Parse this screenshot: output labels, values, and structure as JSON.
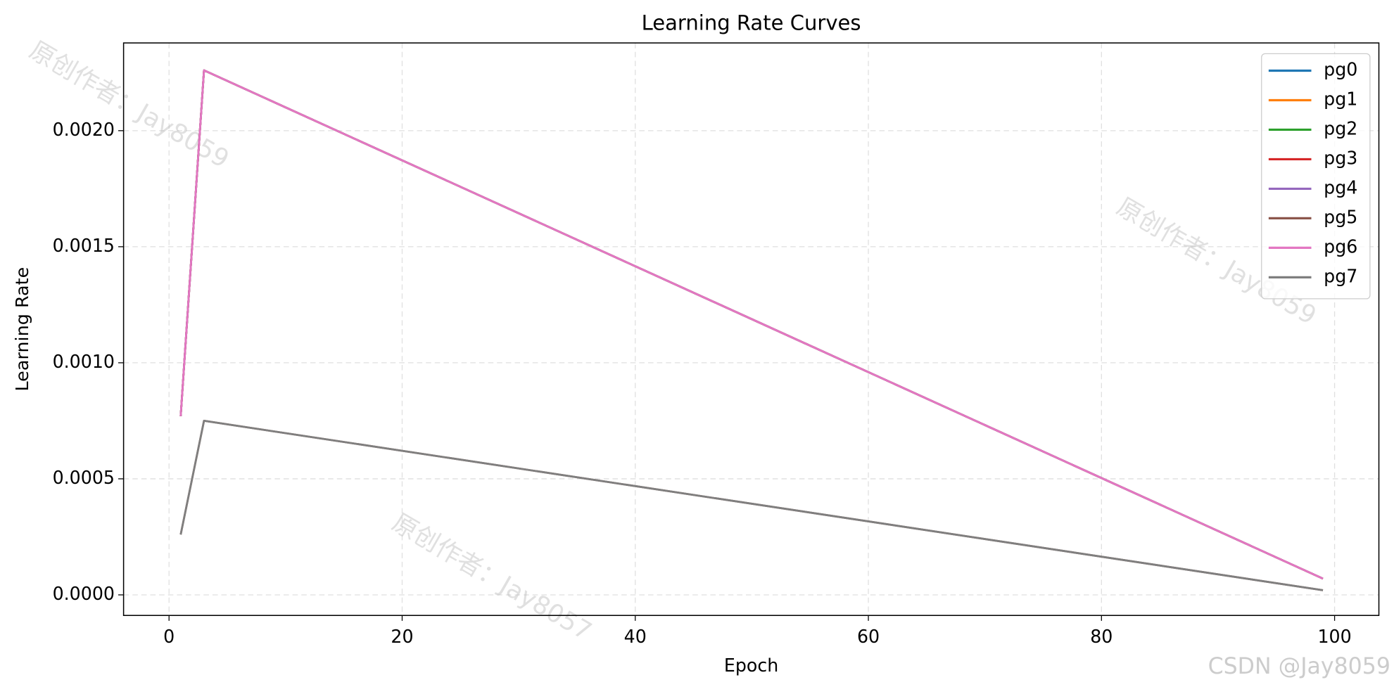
{
  "chart_data": {
    "type": "line",
    "title": "Learning Rate Curves",
    "x_label": "Epoch",
    "y_label": "Learning Rate",
    "x": [
      1,
      3,
      99
    ],
    "series": [
      {
        "name": "pg0",
        "color": "#1f77b4",
        "values": [
          0.00077,
          0.00226,
          7e-05
        ]
      },
      {
        "name": "pg1",
        "color": "#ff7f0e",
        "values": [
          0.00077,
          0.00226,
          7e-05
        ]
      },
      {
        "name": "pg2",
        "color": "#2ca02c",
        "values": [
          0.00077,
          0.00226,
          7e-05
        ]
      },
      {
        "name": "pg3",
        "color": "#d62728",
        "values": [
          0.00077,
          0.00226,
          7e-05
        ]
      },
      {
        "name": "pg4",
        "color": "#9467bd",
        "values": [
          0.00077,
          0.00226,
          7e-05
        ]
      },
      {
        "name": "pg5",
        "color": "#8c564b",
        "values": [
          0.00026,
          0.00075,
          2e-05
        ]
      },
      {
        "name": "pg6",
        "color": "#e377c2",
        "values": [
          0.00077,
          0.00226,
          7e-05
        ]
      },
      {
        "name": "pg7",
        "color": "#7f7f7f",
        "values": [
          0.00026,
          0.00075,
          2e-05
        ]
      }
    ],
    "xlim": [
      -3.9,
      103.8
    ],
    "ylim": [
      -8.86e-05,
      0.002378
    ],
    "xticks": [
      0,
      20,
      40,
      60,
      80,
      100
    ],
    "yticks": [
      {
        "value": 0,
        "label": "0.0000"
      },
      {
        "value": 0.0005,
        "label": "0.0005"
      },
      {
        "value": 0.001,
        "label": "0.0010"
      },
      {
        "value": 0.0015,
        "label": "0.0015"
      },
      {
        "value": 0.002,
        "label": "0.0020"
      }
    ],
    "grid": true,
    "legend": "upper right",
    "watermarks": [
      "原创作者：Jay8059",
      "原创作者：Jay8059",
      "原创作者：Jay8057"
    ],
    "credit": "CSDN @Jay8059"
  }
}
